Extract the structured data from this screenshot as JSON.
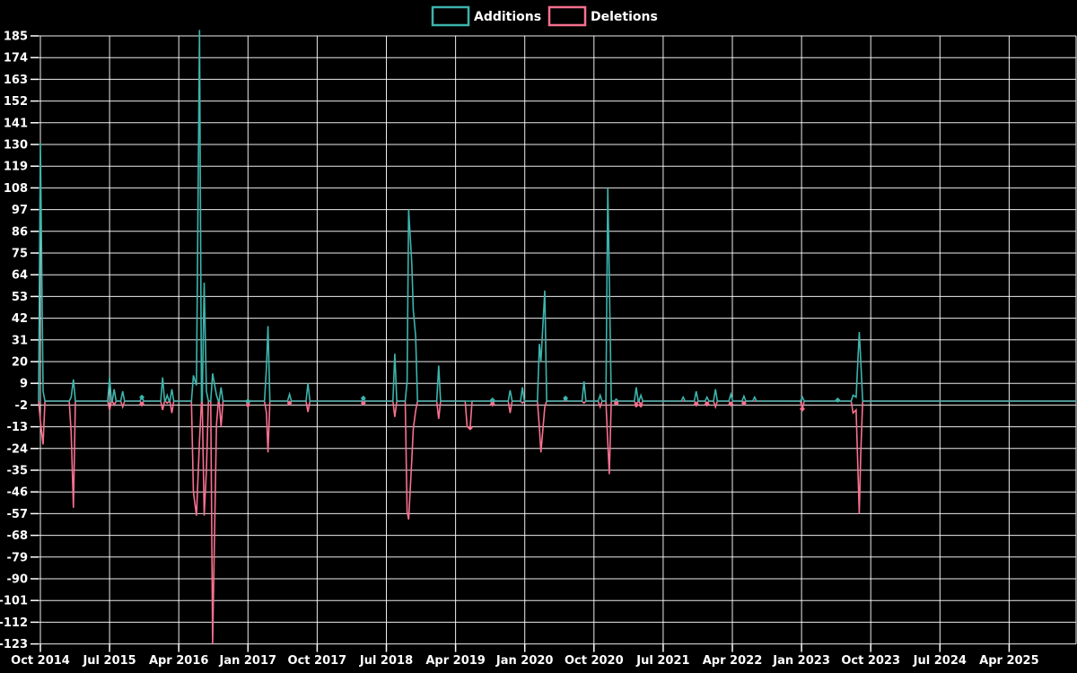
{
  "legend": {
    "additions_label": "Additions",
    "deletions_label": "Deletions",
    "additions_color": "#3cb4ac",
    "deletions_color": "#f8708f"
  },
  "colors": {
    "background": "#000000",
    "grid": "#ffffff",
    "text": "#ffffff",
    "additions": "#3cb4ac",
    "deletions": "#f8708f"
  },
  "chart_data": {
    "type": "line",
    "title": "",
    "xlabel": "",
    "ylabel": "",
    "grid": true,
    "legend_position": "top-center",
    "x_axis": {
      "tick_labels": [
        "Oct 2014",
        "Jul 2015",
        "Apr 2016",
        "Jan 2017",
        "Oct 2017",
        "Jul 2018",
        "Apr 2019",
        "Jan 2020",
        "Oct 2020",
        "Jul 2021",
        "Apr 2022",
        "Jan 2023",
        "Oct 2023",
        "Jul 2024",
        "Apr 2025"
      ],
      "tick_interval_months": 9,
      "t_unit": "months since Oct 2014",
      "t_min": -0.25,
      "t_max": 134.7
    },
    "y_axis": {
      "ticks": [
        185,
        174,
        163,
        152,
        141,
        130,
        119,
        108,
        97,
        86,
        75,
        64,
        53,
        42,
        31,
        20,
        9,
        -2,
        -13,
        -24,
        -35,
        -46,
        -57,
        -68,
        -79,
        -90,
        -101,
        -112,
        -123
      ],
      "min": -123,
      "max": 185,
      "step": 11
    },
    "series": [
      {
        "name": "Additions",
        "color": "#3cb4ac",
        "marker": "diamond",
        "points": [
          [
            0,
            131
          ],
          [
            0.35,
            5
          ],
          [
            4.0,
            2
          ],
          [
            4.3,
            11
          ],
          [
            9.0,
            12
          ],
          [
            9.6,
            6
          ],
          [
            10.7,
            5
          ],
          [
            13.2,
            2,
            1
          ],
          [
            15.9,
            12
          ],
          [
            16.5,
            3
          ],
          [
            17.1,
            6
          ],
          [
            19.9,
            13
          ],
          [
            20.3,
            8
          ],
          [
            20.7,
            188
          ],
          [
            21.3,
            60
          ],
          [
            21.6,
            5
          ],
          [
            22.4,
            14
          ],
          [
            22.9,
            3
          ],
          [
            23.5,
            7
          ],
          [
            27.0,
            0,
            1
          ],
          [
            29.4,
            17
          ],
          [
            29.6,
            38
          ],
          [
            32.4,
            3.5
          ],
          [
            34.8,
            9
          ],
          [
            42.0,
            1.5,
            1
          ],
          [
            46.1,
            24
          ],
          [
            47.7,
            10
          ],
          [
            47.9,
            97
          ],
          [
            48.3,
            70
          ],
          [
            48.5,
            46
          ],
          [
            48.8,
            33
          ],
          [
            51.8,
            18
          ],
          [
            55.5,
            0
          ],
          [
            55.9,
            0
          ],
          [
            58.8,
            0.5,
            1
          ],
          [
            61.1,
            5.5
          ],
          [
            62.7,
            7
          ],
          [
            64.9,
            29
          ],
          [
            65.1,
            20
          ],
          [
            65.6,
            56
          ],
          [
            68.3,
            1.5,
            1
          ],
          [
            70.7,
            10
          ],
          [
            72.8,
            3
          ],
          [
            73.8,
            108
          ],
          [
            74.0,
            62
          ],
          [
            74.9,
            1
          ],
          [
            77.5,
            7
          ],
          [
            78.1,
            3
          ],
          [
            83.6,
            2
          ],
          [
            85.3,
            5
          ],
          [
            86.7,
            2
          ],
          [
            87.8,
            6
          ],
          [
            89.8,
            3.5
          ],
          [
            91.5,
            2.5
          ],
          [
            92.9,
            2
          ],
          [
            99.1,
            2
          ],
          [
            103.7,
            0.5,
            1
          ],
          [
            105.7,
            3
          ],
          [
            106.1,
            2
          ],
          [
            106.5,
            35
          ],
          [
            106.7,
            20
          ]
        ]
      },
      {
        "name": "Deletions",
        "color": "#f8708f",
        "marker": "diamond",
        "points": [
          [
            0,
            -10
          ],
          [
            0.35,
            -22
          ],
          [
            4.0,
            -16
          ],
          [
            4.3,
            -54
          ],
          [
            9.0,
            -4.5
          ],
          [
            9.6,
            -2
          ],
          [
            10.7,
            -3
          ],
          [
            13.2,
            -1.5,
            1
          ],
          [
            15.9,
            -4.5
          ],
          [
            16.5,
            -1
          ],
          [
            17.1,
            -6
          ],
          [
            19.9,
            -46
          ],
          [
            20.3,
            -58
          ],
          [
            20.7,
            -20
          ],
          [
            21.3,
            -58
          ],
          [
            21.6,
            -35
          ],
          [
            22.4,
            -123
          ],
          [
            22.9,
            -12
          ],
          [
            23.5,
            -13
          ],
          [
            27.0,
            -2,
            1
          ],
          [
            29.4,
            -6
          ],
          [
            29.6,
            -26
          ],
          [
            32.4,
            -1,
            1
          ],
          [
            34.8,
            -5.5
          ],
          [
            42.0,
            -1,
            1
          ],
          [
            46.1,
            -8
          ],
          [
            47.7,
            -56
          ],
          [
            47.9,
            -60
          ],
          [
            48.3,
            -30
          ],
          [
            48.5,
            -14
          ],
          [
            48.8,
            -5
          ],
          [
            51.8,
            -9
          ],
          [
            55.5,
            -13
          ],
          [
            55.9,
            -13.5,
            1
          ],
          [
            58.8,
            -1.5,
            1
          ],
          [
            61.1,
            -6
          ],
          [
            62.7,
            -1
          ],
          [
            64.9,
            -13.5
          ],
          [
            65.1,
            -26
          ],
          [
            65.6,
            -3
          ],
          [
            68.3,
            0
          ],
          [
            70.7,
            -1
          ],
          [
            72.8,
            -3
          ],
          [
            73.8,
            -21
          ],
          [
            74.0,
            -37
          ],
          [
            74.9,
            -1,
            1
          ],
          [
            77.5,
            -2,
            1
          ],
          [
            78.1,
            -2,
            1
          ],
          [
            83.6,
            0
          ],
          [
            85.3,
            -1.5,
            1
          ],
          [
            86.7,
            -1.5,
            1
          ],
          [
            87.8,
            -3
          ],
          [
            89.8,
            -1.5,
            1
          ],
          [
            91.5,
            -1,
            1
          ],
          [
            92.9,
            0
          ],
          [
            99.1,
            -4,
            1
          ],
          [
            103.7,
            0
          ],
          [
            105.7,
            -6
          ],
          [
            106.1,
            -4.5
          ],
          [
            106.5,
            -57
          ],
          [
            106.7,
            -26
          ]
        ]
      }
    ]
  }
}
